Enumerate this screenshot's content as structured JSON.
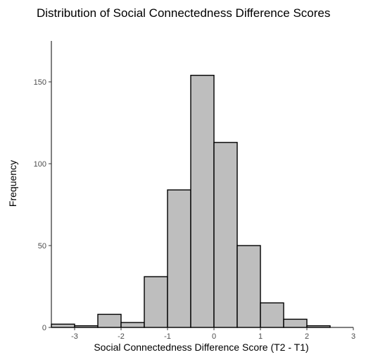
{
  "chart_data": {
    "type": "bar",
    "title": "Distribution of Social Connectedness Difference Scores",
    "xlabel": "Social Connectedness Difference Score (T2 - T1)",
    "ylabel": "Frequency",
    "bin_width": 0.5,
    "bins": [
      {
        "start": -3.5,
        "end": -3.0,
        "count": 2
      },
      {
        "start": -3.0,
        "end": -2.5,
        "count": 1
      },
      {
        "start": -2.5,
        "end": -2.0,
        "count": 8
      },
      {
        "start": -2.0,
        "end": -1.5,
        "count": 3
      },
      {
        "start": -1.5,
        "end": -1.0,
        "count": 31
      },
      {
        "start": -1.0,
        "end": -0.5,
        "count": 84
      },
      {
        "start": -0.5,
        "end": 0.0,
        "count": 154
      },
      {
        "start": 0.0,
        "end": 0.5,
        "count": 113
      },
      {
        "start": 0.5,
        "end": 1.0,
        "count": 50
      },
      {
        "start": 1.0,
        "end": 1.5,
        "count": 15
      },
      {
        "start": 1.5,
        "end": 2.0,
        "count": 5
      },
      {
        "start": 2.0,
        "end": 2.5,
        "count": 1
      }
    ],
    "xlim": [
      -3.5,
      3.0
    ],
    "ylim": [
      0,
      175
    ],
    "xticks": [
      -3,
      -2,
      -1,
      0,
      1,
      2,
      3
    ],
    "yticks": [
      0,
      50,
      100,
      150
    ],
    "grid": false,
    "bar_fill": "#bebebe",
    "bar_stroke": "#000000"
  }
}
